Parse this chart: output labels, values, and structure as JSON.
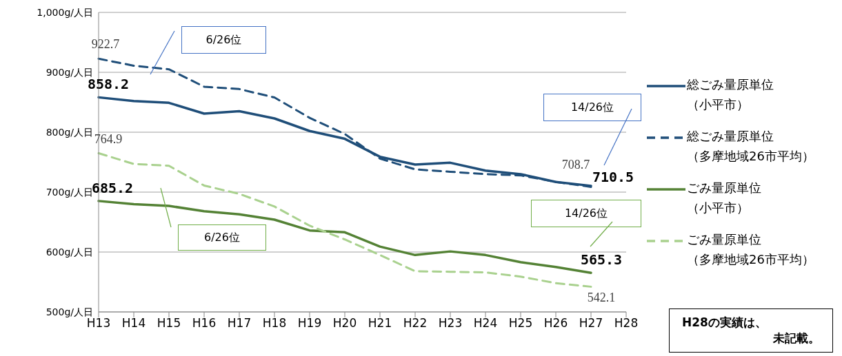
{
  "chart_data": {
    "type": "line",
    "categories": [
      "H13",
      "H14",
      "H15",
      "H16",
      "H17",
      "H18",
      "H19",
      "H20",
      "H21",
      "H22",
      "H23",
      "H24",
      "H25",
      "H26",
      "H27",
      "H28"
    ],
    "series": [
      {
        "name": "総ごみ量原単位（小平市）",
        "color": "#1f4e79",
        "line_style": "solid",
        "values": [
          858.2,
          852,
          849,
          831,
          835,
          823,
          802,
          789,
          759,
          746,
          749,
          736,
          730,
          717,
          710.5,
          null
        ],
        "value_labels": [
          "858.2",
          null,
          null,
          null,
          null,
          null,
          null,
          null,
          null,
          null,
          null,
          null,
          null,
          null,
          "710.5",
          null
        ]
      },
      {
        "name": "総ごみ量原単位（多摩地域26市平均）",
        "color": "#1f4e79",
        "line_style": "dashed",
        "values": [
          922.7,
          911,
          905,
          876,
          872,
          858,
          824,
          797,
          756,
          738,
          734,
          730,
          728,
          717,
          708.7,
          null
        ],
        "value_labels": [
          "922.7",
          null,
          null,
          null,
          null,
          null,
          null,
          null,
          null,
          null,
          null,
          null,
          null,
          null,
          "708.7",
          null
        ]
      },
      {
        "name": "ごみ量原単位（小平市）",
        "color": "#548235",
        "line_style": "solid",
        "values": [
          685.2,
          680,
          677,
          668,
          663,
          654,
          636,
          633,
          609,
          595,
          601,
          595,
          583,
          575,
          565.3,
          null
        ],
        "value_labels": [
          "685.2",
          null,
          null,
          null,
          null,
          null,
          null,
          null,
          null,
          null,
          null,
          null,
          null,
          null,
          "565.3",
          null
        ]
      },
      {
        "name": "ごみ量原単位（多摩地域26市平均）",
        "color": "#a9d18e",
        "line_style": "dashed",
        "values": [
          764.9,
          747,
          744,
          711,
          697,
          676,
          644,
          621,
          595,
          568,
          567,
          566,
          559,
          548,
          542.1,
          null
        ],
        "value_labels": [
          "764.9",
          null,
          null,
          null,
          null,
          null,
          null,
          null,
          null,
          null,
          null,
          null,
          null,
          null,
          "542.1",
          null
        ]
      }
    ],
    "ylim": [
      500,
      1000
    ],
    "yticks": [
      {
        "value": 500,
        "label": "500g/人日"
      },
      {
        "value": 600,
        "label": "600g/人日"
      },
      {
        "value": 700,
        "label": "700g/人日"
      },
      {
        "value": 800,
        "label": "800g/人日"
      },
      {
        "value": 900,
        "label": "900g/人日"
      },
      {
        "value": 1000,
        "label": "1,000g/人日"
      }
    ],
    "grid": "y",
    "legend": "right",
    "annotations": [
      "6/26位",
      "14/26位",
      "6/26位",
      "14/26位",
      "H28の実績は、未記載。"
    ]
  }
}
